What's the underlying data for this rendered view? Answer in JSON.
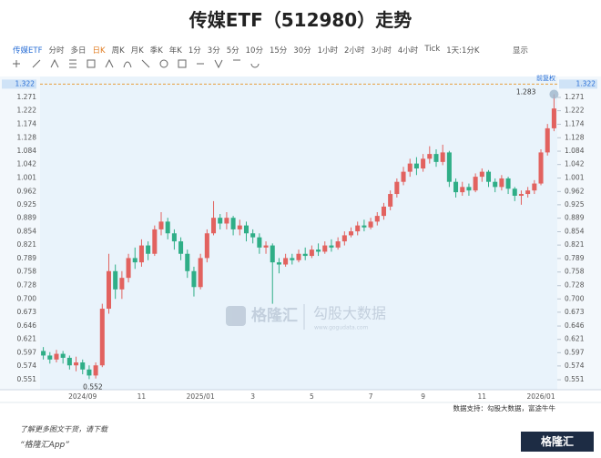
{
  "chart_data": {
    "type": "candlestick",
    "title": "传媒ETF（512980）走势",
    "toolbar": [
      "传媒ETF",
      "分时",
      "多日",
      "日K",
      "周K",
      "月K",
      "季K",
      "年K",
      "1分",
      "3分",
      "5分",
      "10分",
      "15分",
      "30分",
      "1小时",
      "2小时",
      "3小时",
      "4小时",
      "Tick",
      "1天:1分K"
    ],
    "toolbar_active": "传媒ETF",
    "toolbar_highlight": "日K",
    "toolbar_right": "显示",
    "adjust_label": "前复权",
    "categories": [
      "",
      "",
      "",
      "",
      "",
      "",
      "2024/09",
      "",
      "",
      "",
      "",
      "",
      "",
      "",
      "",
      "11",
      "",
      "",
      "",
      "",
      "",
      "",
      "",
      "",
      "2025/01",
      "",
      "",
      "",
      "",
      "",
      "",
      "",
      "3",
      "",
      "",
      "",
      "",
      "",
      "",
      "",
      "",
      "5",
      "",
      "",
      "",
      "",
      "",
      "",
      "",
      "",
      "7",
      "",
      "",
      "",
      "",
      "",
      "",
      "",
      "9",
      "",
      "",
      "",
      "",
      "",
      "",
      "",
      "",
      "11",
      "",
      "",
      "",
      "",
      "",
      "",
      "",
      "",
      "2026/01",
      "",
      ""
    ],
    "open": [
      0.6,
      0.592,
      0.585,
      0.595,
      0.588,
      0.575,
      0.58,
      0.568,
      0.558,
      0.575,
      0.68,
      0.76,
      0.72,
      0.745,
      0.79,
      0.78,
      0.82,
      0.8,
      0.86,
      0.88,
      0.85,
      0.83,
      0.8,
      0.76,
      0.725,
      0.79,
      0.85,
      0.89,
      0.875,
      0.89,
      0.86,
      0.87,
      0.85,
      0.84,
      0.815,
      0.82,
      0.78,
      0.775,
      0.79,
      0.785,
      0.8,
      0.795,
      0.81,
      0.805,
      0.82,
      0.815,
      0.83,
      0.845,
      0.855,
      0.87,
      0.865,
      0.88,
      0.895,
      0.92,
      0.955,
      0.99,
      1.02,
      1.045,
      1.03,
      1.06,
      1.075,
      1.05,
      1.08,
      0.99,
      0.96,
      0.975,
      0.965,
      1.005,
      1.02,
      0.99,
      0.975,
      1.0,
      0.97,
      0.95,
      0.955,
      0.965,
      0.985,
      1.08,
      1.16
    ],
    "high": [
      0.607,
      0.598,
      0.602,
      0.6,
      0.592,
      0.59,
      0.585,
      0.575,
      0.58,
      0.69,
      0.8,
      0.775,
      0.76,
      0.8,
      0.815,
      0.835,
      0.83,
      0.87,
      0.905,
      0.89,
      0.86,
      0.84,
      0.81,
      0.77,
      0.8,
      0.86,
      0.935,
      0.9,
      0.905,
      0.895,
      0.885,
      0.88,
      0.86,
      0.85,
      0.83,
      0.825,
      0.79,
      0.8,
      0.8,
      0.81,
      0.815,
      0.82,
      0.825,
      0.83,
      0.835,
      0.84,
      0.855,
      0.865,
      0.88,
      0.885,
      0.89,
      0.905,
      0.93,
      0.965,
      1.0,
      1.035,
      1.06,
      1.065,
      1.075,
      1.1,
      1.09,
      1.105,
      1.085,
      1.0,
      0.99,
      0.985,
      1.015,
      1.03,
      1.025,
      1.0,
      1.01,
      1.005,
      0.975,
      0.965,
      0.975,
      0.995,
      1.09,
      1.175,
      1.283
    ],
    "low": [
      0.585,
      0.578,
      0.58,
      0.578,
      0.568,
      0.565,
      0.56,
      0.552,
      0.553,
      0.572,
      0.67,
      0.7,
      0.7,
      0.735,
      0.765,
      0.77,
      0.785,
      0.795,
      0.845,
      0.835,
      0.81,
      0.785,
      0.745,
      0.705,
      0.72,
      0.78,
      0.845,
      0.86,
      0.86,
      0.845,
      0.845,
      0.83,
      0.825,
      0.8,
      0.8,
      0.69,
      0.755,
      0.77,
      0.775,
      0.78,
      0.785,
      0.79,
      0.795,
      0.8,
      0.805,
      0.81,
      0.82,
      0.84,
      0.845,
      0.855,
      0.86,
      0.87,
      0.885,
      0.91,
      0.945,
      0.98,
      1.005,
      1.01,
      1.02,
      1.045,
      1.035,
      1.04,
      0.975,
      0.945,
      0.95,
      0.95,
      0.96,
      0.99,
      0.975,
      0.96,
      0.965,
      0.955,
      0.935,
      0.925,
      0.945,
      0.955,
      0.98,
      1.07,
      1.15
    ],
    "close": [
      0.592,
      0.585,
      0.595,
      0.588,
      0.575,
      0.58,
      0.568,
      0.558,
      0.575,
      0.68,
      0.76,
      0.72,
      0.745,
      0.79,
      0.78,
      0.82,
      0.8,
      0.86,
      0.88,
      0.85,
      0.83,
      0.8,
      0.76,
      0.725,
      0.79,
      0.85,
      0.89,
      0.875,
      0.89,
      0.86,
      0.87,
      0.85,
      0.84,
      0.815,
      0.82,
      0.78,
      0.775,
      0.79,
      0.785,
      0.8,
      0.795,
      0.81,
      0.805,
      0.82,
      0.815,
      0.83,
      0.845,
      0.855,
      0.87,
      0.865,
      0.88,
      0.895,
      0.92,
      0.955,
      0.99,
      1.02,
      1.045,
      1.03,
      1.06,
      1.075,
      1.05,
      1.08,
      0.99,
      0.96,
      0.975,
      0.965,
      1.005,
      1.02,
      0.99,
      0.975,
      1.0,
      0.97,
      0.95,
      0.955,
      0.965,
      0.985,
      1.08,
      1.16,
      1.23
    ],
    "up_color": "#e2625f",
    "down_color": "#2fae87",
    "log_scale": true,
    "ylim": [
      0.535,
      1.345
    ],
    "yticks": [
      1.271,
      1.222,
      1.174,
      1.128,
      1.084,
      1.042,
      1.001,
      0.962,
      0.925,
      0.889,
      0.854,
      0.821,
      0.789,
      0.758,
      0.728,
      {
        "value": 0.7,
        "label": "0.700"
      },
      0.673,
      0.646,
      0.621,
      0.597,
      0.574,
      0.551
    ],
    "price_line": 1.322,
    "max_marker": 1.283,
    "min_marker": 0.552,
    "source": "数据支持：勾股大数据，富途牛牛",
    "watermark": [
      "格隆汇",
      "勾股大数据",
      "www.gogudata.com"
    ],
    "footer": [
      "了解更多图文干货，请下载",
      "“格隆汇App”"
    ],
    "logo": "格隆汇"
  }
}
